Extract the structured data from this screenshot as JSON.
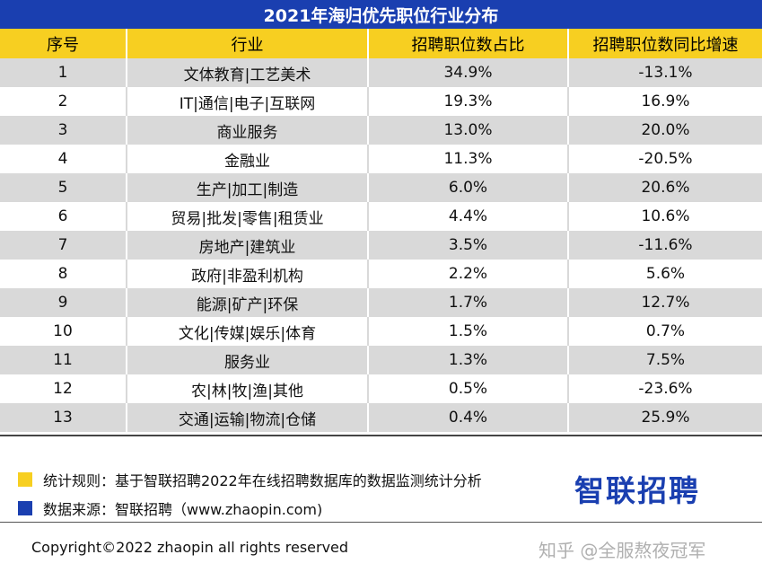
{
  "header": {
    "title": "2021年海归优先职位行业分布"
  },
  "chart_data": {
    "type": "table",
    "title": "2021年海归优先职位行业分布",
    "columns": [
      "序号",
      "行业",
      "招聘职位数占比",
      "招聘职位数同比增速"
    ],
    "rows": [
      [
        "1",
        "文体教育|工艺美术",
        "34.9%",
        "-13.1%"
      ],
      [
        "2",
        "IT|通信|电子|互联网",
        "19.3%",
        "16.9%"
      ],
      [
        "3",
        "商业服务",
        "13.0%",
        "20.0%"
      ],
      [
        "4",
        "金融业",
        "11.3%",
        "-20.5%"
      ],
      [
        "5",
        "生产|加工|制造",
        "6.0%",
        "20.6%"
      ],
      [
        "6",
        "贸易|批发|零售|租赁业",
        "4.4%",
        "10.6%"
      ],
      [
        "7",
        "房地产|建筑业",
        "3.5%",
        "-11.6%"
      ],
      [
        "8",
        "政府|非盈利机构",
        "2.2%",
        "5.6%"
      ],
      [
        "9",
        "能源|矿产|环保",
        "1.7%",
        "12.7%"
      ],
      [
        "10",
        "文化|传媒|娱乐|体育",
        "1.5%",
        "0.7%"
      ],
      [
        "11",
        "服务业",
        "1.3%",
        "7.5%"
      ],
      [
        "12",
        "农|林|牧|渔|其他",
        "0.5%",
        "-23.6%"
      ],
      [
        "13",
        "交通|运输|物流|仓储",
        "0.4%",
        "25.9%"
      ]
    ]
  },
  "notes": {
    "rule": "统计规则：基于智联招聘2022年在线招聘数据库的数据监测统计分析",
    "source": "数据来源：智联招聘（www.zhaopin.com)"
  },
  "brand": {
    "logo_text": "智联招聘"
  },
  "footer": {
    "copyright": "Copyright©2022 zhaopin all rights reserved",
    "watermark": "知乎 @全服熬夜冠军"
  },
  "colors": {
    "title_bg": "#1a3fb0",
    "header_bg": "#f7cf21",
    "stripe_bg": "#d9d9d9",
    "note_yellow": "#f7cf21",
    "note_blue": "#1a3fb0"
  }
}
